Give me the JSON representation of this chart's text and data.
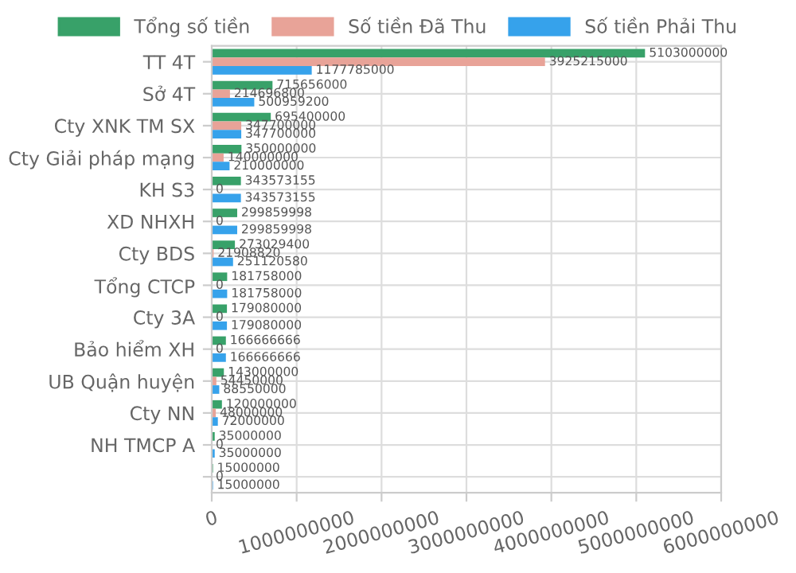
{
  "chart_data": {
    "type": "bar",
    "orientation": "horizontal",
    "categories": [
      "TT 4T",
      "Sở 4T",
      "Cty XNK TM SX",
      "Cty Giải pháp mạng",
      "KH S3",
      "XD NHXH",
      "Cty BDS",
      "Tổng CTCP",
      "Cty 3A",
      "Bảo hiểm XH",
      "UB Quận huyện",
      "Cty NN",
      "NH TMCP A",
      null
    ],
    "series": [
      {
        "name": "Tổng số tiền",
        "color": "#38a169",
        "values": [
          5103000000,
          715656000,
          695400000,
          350000000,
          343573155,
          299859998,
          273029400,
          181758000,
          179080000,
          166666666,
          143000000,
          120000000,
          35000000,
          15000000
        ]
      },
      {
        "name": "Số tiền Đã Thu",
        "color": "#e8a398",
        "values": [
          3925215000,
          214696800,
          347700000,
          140000000,
          0,
          0,
          21908820,
          0,
          0,
          0,
          54450000,
          48000000,
          0,
          0
        ]
      },
      {
        "name": "Số tiền Phải Thu",
        "color": "#36a2eb",
        "values": [
          1177785000,
          500959200,
          347700000,
          210000000,
          343573155,
          299859998,
          251120580,
          181758000,
          179080000,
          166666666,
          88550000,
          72000000,
          35000000,
          15000000
        ]
      }
    ],
    "xlim": [
      0,
      6000000000
    ],
    "xticks": [
      0,
      1000000000,
      2000000000,
      3000000000,
      4000000000,
      5000000000,
      6000000000
    ],
    "grid": true,
    "legend": "top",
    "data_labels": true
  }
}
